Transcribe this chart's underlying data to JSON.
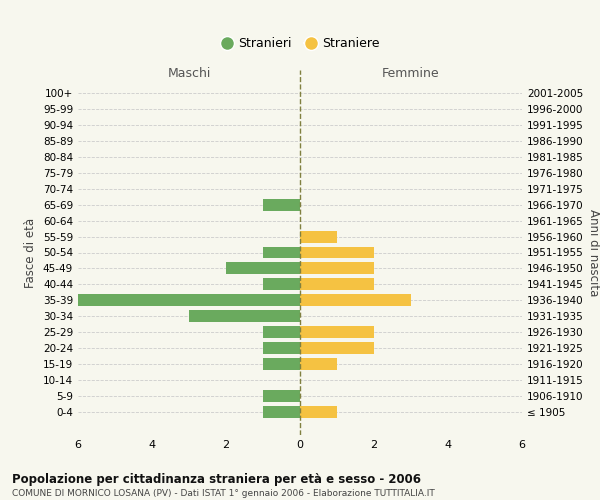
{
  "age_groups": [
    "100+",
    "95-99",
    "90-94",
    "85-89",
    "80-84",
    "75-79",
    "70-74",
    "65-69",
    "60-64",
    "55-59",
    "50-54",
    "45-49",
    "40-44",
    "35-39",
    "30-34",
    "25-29",
    "20-24",
    "15-19",
    "10-14",
    "5-9",
    "0-4"
  ],
  "birth_years": [
    "≤ 1905",
    "1906-1910",
    "1911-1915",
    "1916-1920",
    "1921-1925",
    "1926-1930",
    "1931-1935",
    "1936-1940",
    "1941-1945",
    "1946-1950",
    "1951-1955",
    "1956-1960",
    "1961-1965",
    "1966-1970",
    "1971-1975",
    "1976-1980",
    "1981-1985",
    "1986-1990",
    "1991-1995",
    "1996-2000",
    "2001-2005"
  ],
  "males": [
    0,
    0,
    0,
    0,
    0,
    0,
    0,
    1,
    0,
    0,
    1,
    2,
    1,
    6,
    3,
    1,
    1,
    1,
    0,
    1,
    1
  ],
  "females": [
    0,
    0,
    0,
    0,
    0,
    0,
    0,
    0,
    0,
    1,
    2,
    2,
    2,
    3,
    0,
    2,
    2,
    1,
    0,
    0,
    1
  ],
  "male_color": "#6aaa5e",
  "female_color": "#f5c242",
  "xlim": 6,
  "xlabel_left": "Maschi",
  "xlabel_right": "Femmine",
  "ylabel_left": "Fasce di età",
  "ylabel_right": "Anni di nascita",
  "title": "Popolazione per cittadinanza straniera per età e sesso - 2006",
  "subtitle": "COMUNE DI MORNICO LOSANA (PV) - Dati ISTAT 1° gennaio 2006 - Elaborazione TUTTITALIA.IT",
  "legend_male": "Stranieri",
  "legend_female": "Straniere",
  "bg_color": "#f7f7ee",
  "grid_color": "#cccccc",
  "bar_height": 0.75
}
